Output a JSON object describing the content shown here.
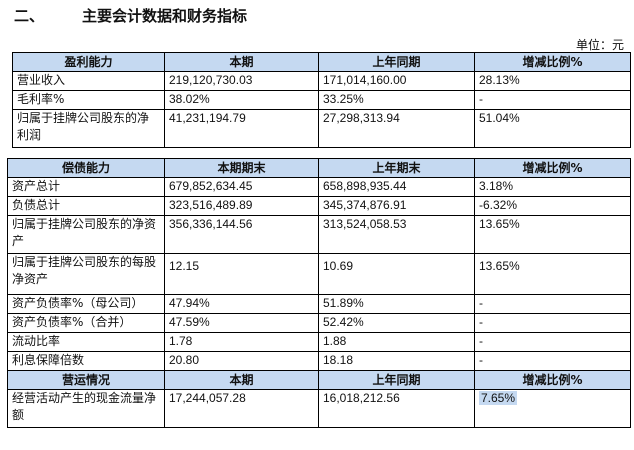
{
  "section": {
    "number": "二、",
    "title": "主要会计数据和财务指标",
    "unit": "单位：元"
  },
  "profit": {
    "headers": [
      "盈利能力",
      "本期",
      "上年同期",
      "增减比例%"
    ],
    "rows": [
      [
        "营业收入",
        "219,120,730.03",
        "171,014,160.00",
        "28.13%"
      ],
      [
        "毛利率%",
        "38.02%",
        "33.25%",
        "-"
      ],
      [
        "归属于挂牌公司股东的净利润",
        "41,231,194.79",
        "27,298,313.94",
        "51.04%"
      ]
    ]
  },
  "solvency": {
    "headers": [
      "偿债能力",
      "本期期末",
      "上年期末",
      "增减比例%"
    ],
    "rows": [
      [
        "资产总计",
        "679,852,634.45",
        "658,898,935.44",
        "3.18%"
      ],
      [
        "负债总计",
        "323,516,489.89",
        "345,374,876.91",
        "-6.32%"
      ],
      [
        "归属于挂牌公司股东的净资产",
        "356,336,144.56",
        "313,524,058.53",
        "13.65%"
      ],
      [
        "归属于挂牌公司股东的每股净资产",
        "12.15",
        "10.69",
        "13.65%"
      ],
      [
        "资产负债率%（母公司）",
        "47.94%",
        "51.89%",
        "-"
      ],
      [
        "资产负债率%（合并）",
        "47.59%",
        "52.42%",
        "-"
      ],
      [
        "流动比率",
        "1.78",
        "1.88",
        "-"
      ],
      [
        "利息保障倍数",
        "20.80",
        "18.18",
        "-"
      ]
    ]
  },
  "operation": {
    "headers": [
      "营运情况",
      "本期",
      "上年同期",
      "增减比例%"
    ],
    "rows": [
      [
        "经营活动产生的现金流量净额",
        "17,244,057.28",
        "16,018,212.56",
        "7.65%"
      ]
    ]
  }
}
